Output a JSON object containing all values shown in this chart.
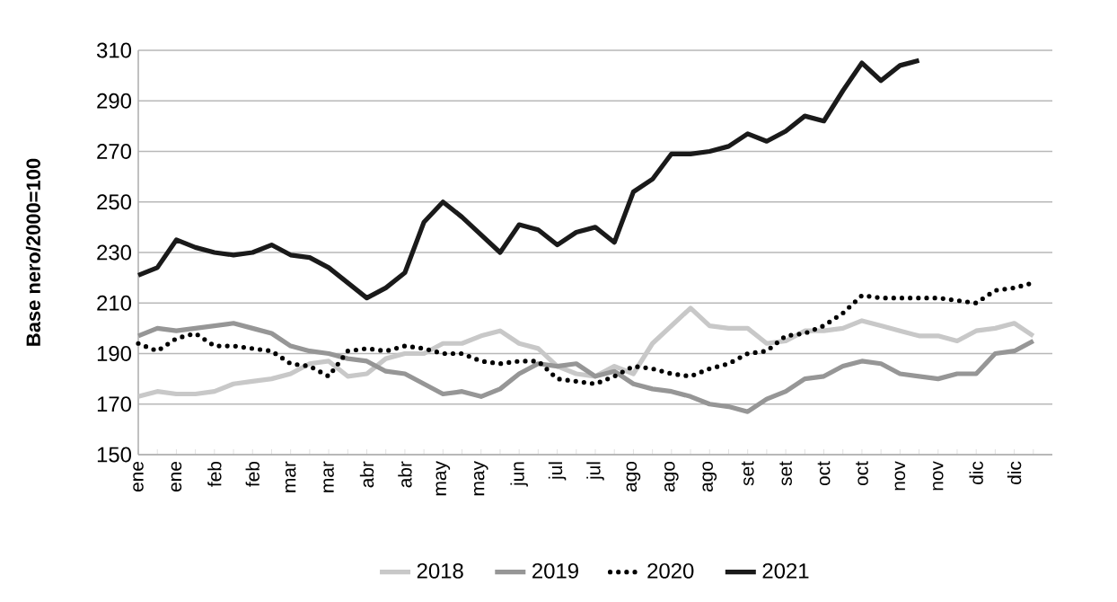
{
  "chart_data": {
    "type": "line",
    "ylabel": "Base nero/2000=100",
    "categories": [
      "ene",
      null,
      "ene",
      null,
      "feb",
      null,
      "feb",
      null,
      "mar",
      null,
      "mar",
      null,
      "abr",
      null,
      "abr",
      null,
      "may",
      null,
      "may",
      null,
      "jun",
      null,
      "jul",
      null,
      "jul",
      null,
      "ago",
      null,
      "ago",
      null,
      "ago",
      null,
      "set",
      null,
      "set",
      null,
      "oct",
      null,
      "oct",
      null,
      "nov",
      null,
      "nov",
      null,
      "dic",
      null,
      "dic",
      null
    ],
    "ylim": [
      150,
      310
    ],
    "yticks": [
      150,
      170,
      190,
      210,
      230,
      250,
      270,
      290,
      310
    ],
    "grid": "y",
    "legend": "bottom",
    "marker": "none",
    "series": [
      {
        "name": "2018",
        "color": "#c8c8c8",
        "line_style": "solid",
        "values": [
          173,
          175,
          174,
          174,
          175,
          178,
          179,
          180,
          182,
          186,
          187,
          181,
          182,
          188,
          190,
          190,
          194,
          194,
          197,
          199,
          194,
          192,
          185,
          182,
          181,
          185,
          182,
          194,
          201,
          208,
          201,
          200,
          200,
          194,
          195,
          199,
          199,
          200,
          203,
          201,
          199,
          197,
          197,
          195,
          199,
          200,
          202,
          197
        ]
      },
      {
        "name": "2019",
        "color": "#969696",
        "line_style": "solid",
        "values": [
          197,
          200,
          199,
          200,
          201,
          202,
          200,
          198,
          193,
          191,
          190,
          188,
          187,
          183,
          182,
          178,
          174,
          175,
          173,
          176,
          182,
          186,
          185,
          186,
          181,
          183,
          178,
          176,
          175,
          173,
          170,
          169,
          167,
          172,
          175,
          180,
          181,
          185,
          187,
          186,
          182,
          181,
          180,
          182,
          182,
          190,
          191,
          195
        ]
      },
      {
        "name": "2020",
        "color": "#000000",
        "line_style": "dotted",
        "values": [
          194,
          191,
          196,
          198,
          193,
          193,
          192,
          191,
          186,
          185,
          181,
          191,
          192,
          191,
          193,
          192,
          190,
          190,
          187,
          186,
          187,
          187,
          180,
          179,
          178,
          181,
          185,
          184,
          182,
          181,
          184,
          186,
          190,
          191,
          197,
          198,
          201,
          206,
          213,
          212,
          212,
          212,
          212,
          211,
          210,
          215,
          216,
          218
        ]
      },
      {
        "name": "2021",
        "color": "#1a1a1a",
        "line_style": "solid",
        "values": [
          221,
          224,
          235,
          232,
          230,
          229,
          230,
          233,
          229,
          228,
          224,
          218,
          212,
          216,
          222,
          242,
          250,
          244,
          237,
          230,
          241,
          239,
          233,
          238,
          240,
          234,
          254,
          259,
          269,
          269,
          270,
          272,
          277,
          274,
          278,
          284,
          282,
          294,
          305,
          298,
          304,
          306,
          null,
          null,
          null,
          null,
          null,
          null
        ]
      }
    ]
  }
}
